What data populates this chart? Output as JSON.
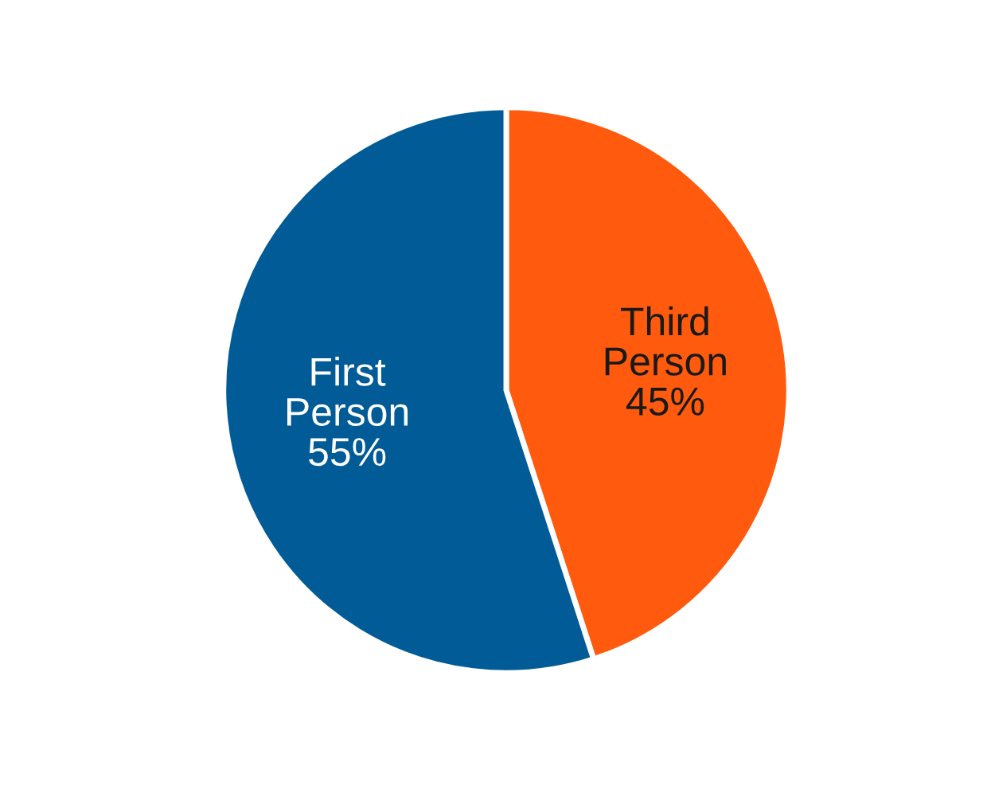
{
  "chart_data": {
    "type": "pie",
    "categories": [
      "Third Person",
      "First Person"
    ],
    "values": [
      45,
      55
    ],
    "value_labels": [
      "45%",
      "55%"
    ],
    "colors": [
      "#ff5a0d",
      "#005b96"
    ]
  }
}
